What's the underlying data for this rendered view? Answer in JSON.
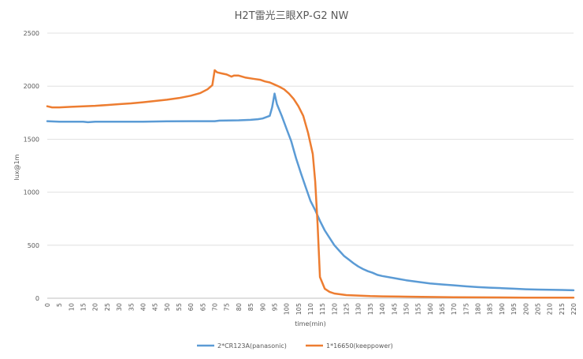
{
  "chart_data": {
    "type": "line",
    "title": "H2T雷光三眼XP-G2 NW",
    "xlabel": "time(min)",
    "ylabel": "lux@1m",
    "xlim": [
      0,
      220
    ],
    "ylim": [
      0,
      2500
    ],
    "x_ticks": [
      0,
      5,
      10,
      15,
      20,
      25,
      30,
      35,
      40,
      45,
      50,
      55,
      60,
      65,
      70,
      75,
      80,
      85,
      90,
      95,
      100,
      105,
      110,
      115,
      120,
      125,
      130,
      135,
      140,
      145,
      150,
      155,
      160,
      165,
      170,
      175,
      180,
      185,
      190,
      195,
      200,
      205,
      210,
      215,
      220
    ],
    "y_ticks": [
      0,
      500,
      1000,
      1500,
      2000,
      2500
    ],
    "grid": "horizontal",
    "legend_position": "bottom",
    "series": [
      {
        "name": "2*CR123A(panasonic)",
        "color": "#5B9BD5",
        "points": [
          [
            0,
            1670
          ],
          [
            5,
            1665
          ],
          [
            10,
            1665
          ],
          [
            15,
            1665
          ],
          [
            17,
            1660
          ],
          [
            20,
            1665
          ],
          [
            30,
            1665
          ],
          [
            40,
            1665
          ],
          [
            50,
            1668
          ],
          [
            60,
            1670
          ],
          [
            70,
            1670
          ],
          [
            72,
            1675
          ],
          [
            80,
            1678
          ],
          [
            85,
            1682
          ],
          [
            88,
            1688
          ],
          [
            90,
            1695
          ],
          [
            93,
            1720
          ],
          [
            94,
            1800
          ],
          [
            95,
            1930
          ],
          [
            96,
            1830
          ],
          [
            98,
            1720
          ],
          [
            100,
            1600
          ],
          [
            102,
            1480
          ],
          [
            104,
            1320
          ],
          [
            106,
            1180
          ],
          [
            108,
            1050
          ],
          [
            110,
            920
          ],
          [
            112,
            830
          ],
          [
            114,
            730
          ],
          [
            116,
            640
          ],
          [
            118,
            570
          ],
          [
            120,
            500
          ],
          [
            122,
            450
          ],
          [
            124,
            400
          ],
          [
            126,
            365
          ],
          [
            128,
            330
          ],
          [
            130,
            300
          ],
          [
            132,
            275
          ],
          [
            134,
            255
          ],
          [
            136,
            240
          ],
          [
            138,
            220
          ],
          [
            140,
            210
          ],
          [
            145,
            190
          ],
          [
            150,
            170
          ],
          [
            155,
            155
          ],
          [
            160,
            140
          ],
          [
            165,
            130
          ],
          [
            170,
            122
          ],
          [
            175,
            112
          ],
          [
            180,
            105
          ],
          [
            185,
            100
          ],
          [
            190,
            95
          ],
          [
            195,
            90
          ],
          [
            200,
            85
          ],
          [
            205,
            82
          ],
          [
            210,
            80
          ],
          [
            215,
            78
          ],
          [
            220,
            75
          ]
        ]
      },
      {
        "name": "1*16650(keeppower)",
        "color": "#ED7D31",
        "points": [
          [
            0,
            1810
          ],
          [
            2,
            1800
          ],
          [
            5,
            1800
          ],
          [
            10,
            1805
          ],
          [
            15,
            1810
          ],
          [
            20,
            1815
          ],
          [
            25,
            1822
          ],
          [
            30,
            1830
          ],
          [
            35,
            1838
          ],
          [
            40,
            1848
          ],
          [
            45,
            1860
          ],
          [
            50,
            1872
          ],
          [
            55,
            1888
          ],
          [
            60,
            1910
          ],
          [
            64,
            1935
          ],
          [
            67,
            1970
          ],
          [
            69,
            2010
          ],
          [
            70,
            2150
          ],
          [
            71,
            2130
          ],
          [
            73,
            2120
          ],
          [
            75,
            2110
          ],
          [
            77,
            2090
          ],
          [
            78,
            2100
          ],
          [
            80,
            2100
          ],
          [
            83,
            2080
          ],
          [
            86,
            2070
          ],
          [
            89,
            2060
          ],
          [
            91,
            2045
          ],
          [
            93,
            2035
          ],
          [
            95,
            2015
          ],
          [
            97,
            1995
          ],
          [
            99,
            1970
          ],
          [
            101,
            1930
          ],
          [
            103,
            1880
          ],
          [
            105,
            1810
          ],
          [
            107,
            1720
          ],
          [
            109,
            1560
          ],
          [
            111,
            1360
          ],
          [
            112,
            1100
          ],
          [
            113,
            700
          ],
          [
            114,
            200
          ],
          [
            116,
            90
          ],
          [
            118,
            60
          ],
          [
            120,
            45
          ],
          [
            125,
            30
          ],
          [
            130,
            25
          ],
          [
            135,
            20
          ],
          [
            140,
            18
          ],
          [
            150,
            15
          ],
          [
            160,
            12
          ],
          [
            170,
            10
          ],
          [
            180,
            8
          ],
          [
            200,
            6
          ],
          [
            220,
            5
          ]
        ]
      }
    ]
  }
}
